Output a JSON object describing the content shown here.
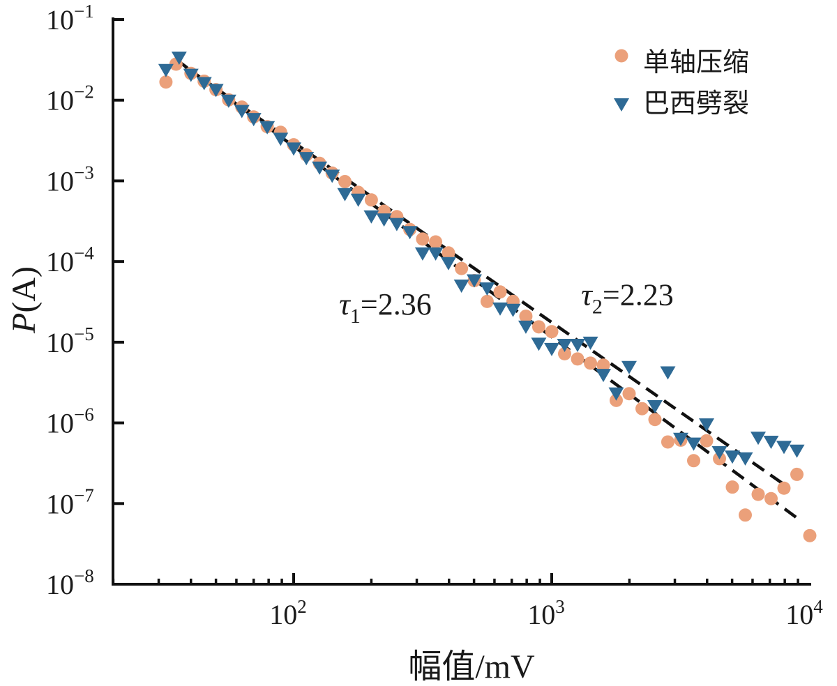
{
  "chart_data": {
    "type": "scatter",
    "x_scale": "log",
    "y_scale": "log",
    "xlim": [
      20,
      10000
    ],
    "ylim": [
      1e-08,
      0.1
    ],
    "xlabel": "幅值/mV",
    "ylabel": "P(A)",
    "ylabel_main": "P",
    "ylabel_paren": "(A)",
    "x_ticks": [
      {
        "value": 100,
        "base": "10",
        "exp": "2"
      },
      {
        "value": 1000,
        "base": "10",
        "exp": "3"
      },
      {
        "value": 10000,
        "base": "10",
        "exp": "4"
      }
    ],
    "y_ticks": [
      {
        "value": 0.1,
        "base": "10",
        "exp": "−1"
      },
      {
        "value": 0.01,
        "base": "10",
        "exp": "−2"
      },
      {
        "value": 0.001,
        "base": "10",
        "exp": "−3"
      },
      {
        "value": 0.0001,
        "base": "10",
        "exp": "−4"
      },
      {
        "value": 1e-05,
        "base": "10",
        "exp": "−5"
      },
      {
        "value": 1e-06,
        "base": "10",
        "exp": "−6"
      },
      {
        "value": 1e-07,
        "base": "10",
        "exp": "−7"
      },
      {
        "value": 1e-08,
        "base": "10",
        "exp": "−8"
      }
    ],
    "series": [
      {
        "name": "单轴压缩",
        "marker": "circle",
        "color": "#EBA07A",
        "points": [
          [
            32,
            0.0168
          ],
          [
            35,
            0.028
          ],
          [
            40,
            0.0215
          ],
          [
            45,
            0.0172
          ],
          [
            50,
            0.0135
          ],
          [
            56,
            0.0101
          ],
          [
            63,
            0.0082
          ],
          [
            70,
            0.0062
          ],
          [
            79,
            0.0047
          ],
          [
            89,
            0.004
          ],
          [
            100,
            0.0028
          ],
          [
            112,
            0.0021
          ],
          [
            126,
            0.00165
          ],
          [
            141,
            0.00125
          ],
          [
            158,
            0.00098
          ],
          [
            178,
            0.00072
          ],
          [
            200,
            0.00058
          ],
          [
            224,
            0.00042
          ],
          [
            251,
            0.00036
          ],
          [
            282,
            0.00025
          ],
          [
            316,
            0.00019
          ],
          [
            355,
            0.000175
          ],
          [
            398,
            0.000128
          ],
          [
            447,
            8.2e-05
          ],
          [
            501,
            5.8e-05
          ],
          [
            562,
            3.2e-05
          ],
          [
            631,
            4.2e-05
          ],
          [
            708,
            3.2e-05
          ],
          [
            794,
            2.1e-05
          ],
          [
            891,
            1.55e-05
          ],
          [
            1000,
            1.35e-05
          ],
          [
            1122,
            7.2e-06
          ],
          [
            1259,
            6.2e-06
          ],
          [
            1413,
            5.5e-06
          ],
          [
            1585,
            5.2e-06
          ],
          [
            1778,
            1.9e-06
          ],
          [
            1995,
            2.3e-06
          ],
          [
            2239,
            1.5e-06
          ],
          [
            2512,
            1.1e-06
          ],
          [
            2818,
            5.8e-07
          ],
          [
            3162,
            6.1e-07
          ],
          [
            3548,
            3.4e-07
          ],
          [
            3981,
            6e-07
          ],
          [
            4467,
            3.6e-07
          ],
          [
            5012,
            1.6e-07
          ],
          [
            5623,
            7.2e-08
          ],
          [
            6310,
            1.3e-07
          ],
          [
            7079,
            1.15e-07
          ],
          [
            7943,
            1.55e-07
          ],
          [
            8913,
            2.3e-07
          ],
          [
            10000,
            4e-08
          ]
        ]
      },
      {
        "name": "巴西劈裂",
        "marker": "triangle-down",
        "color": "#2E6A95",
        "points": [
          [
            32,
            0.0235
          ],
          [
            36,
            0.0335
          ],
          [
            40,
            0.0205
          ],
          [
            45,
            0.0162
          ],
          [
            50,
            0.0133
          ],
          [
            56,
            0.0098
          ],
          [
            63,
            0.0073
          ],
          [
            70,
            0.0058
          ],
          [
            79,
            0.0046
          ],
          [
            89,
            0.0033
          ],
          [
            100,
            0.0025
          ],
          [
            112,
            0.0019
          ],
          [
            126,
            0.00145
          ],
          [
            141,
            0.00115
          ],
          [
            158,
            0.00068
          ],
          [
            178,
            0.00058
          ],
          [
            200,
            0.00036
          ],
          [
            224,
            0.00033
          ],
          [
            251,
            0.00029
          ],
          [
            282,
            0.00023
          ],
          [
            316,
            0.000125
          ],
          [
            355,
            0.000125
          ],
          [
            398,
            9.5e-05
          ],
          [
            447,
            5e-05
          ],
          [
            501,
            5.8e-05
          ],
          [
            562,
            4.6e-05
          ],
          [
            631,
            2.6e-05
          ],
          [
            708,
            2.5e-05
          ],
          [
            794,
            1.55e-05
          ],
          [
            891,
            9.5e-06
          ],
          [
            1000,
            8.2e-06
          ],
          [
            1122,
            9.2e-06
          ],
          [
            1259,
            9.2e-06
          ],
          [
            1413,
            9.8e-06
          ],
          [
            1585,
            3.9e-06
          ],
          [
            1778,
            2.3e-06
          ],
          [
            1995,
            4.9e-06
          ],
          [
            2512,
            1.6e-06
          ],
          [
            2818,
            4.2e-06
          ],
          [
            3162,
            6.3e-07
          ],
          [
            3548,
            5.5e-07
          ],
          [
            3981,
            9.5e-07
          ],
          [
            4467,
            4.3e-07
          ],
          [
            5012,
            3.8e-07
          ],
          [
            5623,
            3.6e-07
          ],
          [
            6310,
            6.5e-07
          ],
          [
            7079,
            5.8e-07
          ],
          [
            7943,
            5e-07
          ],
          [
            8913,
            4.5e-07
          ]
        ]
      }
    ],
    "fit_lines": [
      {
        "label": "τ1=2.36",
        "symbol": "τ",
        "sub": "1",
        "value": "=2.36",
        "slope": -2.36,
        "from": [
          35,
          0.032
        ],
        "to": [
          9300,
          6e-08
        ],
        "label_at": [
          150,
          2.2e-05
        ]
      },
      {
        "label": "τ2=2.23",
        "symbol": "τ",
        "sub": "2",
        "value": "=2.23",
        "slope": -2.23,
        "from": [
          38,
          0.026
        ],
        "to": [
          8000,
          1.7e-07
        ],
        "label_at": [
          1300,
          2.9e-05
        ]
      }
    ],
    "legend": {
      "position": "top-right"
    }
  }
}
